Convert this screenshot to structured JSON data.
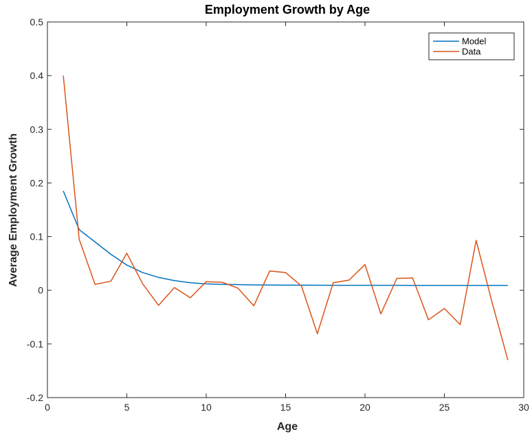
{
  "chart_data": {
    "type": "line",
    "title": "Employment Growth by Age",
    "xlabel": "Age",
    "ylabel": "Average Employment Growth",
    "xlim": [
      0,
      30
    ],
    "ylim": [
      -0.2,
      0.5
    ],
    "xticks": [
      0,
      5,
      10,
      15,
      20,
      25,
      30
    ],
    "yticks": [
      -0.2,
      -0.1,
      0,
      0.1,
      0.2,
      0.3,
      0.4,
      0.5
    ],
    "xtick_labels": [
      "0",
      "5",
      "10",
      "15",
      "20",
      "25",
      "30"
    ],
    "ytick_labels": [
      "-0.2",
      "-0.1",
      "0",
      "0.1",
      "0.2",
      "0.3",
      "0.4",
      "0.5"
    ],
    "grid": false,
    "legend_position": "top-right",
    "x": [
      1,
      2,
      3,
      4,
      5,
      6,
      7,
      8,
      9,
      10,
      11,
      12,
      13,
      14,
      15,
      16,
      17,
      18,
      19,
      20,
      21,
      22,
      23,
      24,
      25,
      26,
      27,
      28,
      29
    ],
    "series": [
      {
        "name": "Model",
        "color": "#0072BD",
        "values": [
          0.185,
          0.113,
          0.09,
          0.067,
          0.047,
          0.033,
          0.024,
          0.018,
          0.014,
          0.012,
          0.011,
          0.0105,
          0.01,
          0.0098,
          0.0096,
          0.0095,
          0.0094,
          0.0093,
          0.0093,
          0.0092,
          0.0092,
          0.0092,
          0.0091,
          0.0091,
          0.0091,
          0.0091,
          0.009,
          0.009,
          0.009
        ]
      },
      {
        "name": "Data",
        "color": "#D95319",
        "values": [
          0.4,
          0.095,
          0.011,
          0.017,
          0.069,
          0.012,
          -0.028,
          0.005,
          -0.014,
          0.016,
          0.015,
          0.004,
          -0.029,
          0.036,
          0.033,
          0.008,
          -0.081,
          0.014,
          0.019,
          0.048,
          -0.044,
          0.022,
          0.023,
          -0.055,
          -0.034,
          -0.064,
          0.093,
          -0.022,
          -0.13
        ]
      }
    ]
  }
}
